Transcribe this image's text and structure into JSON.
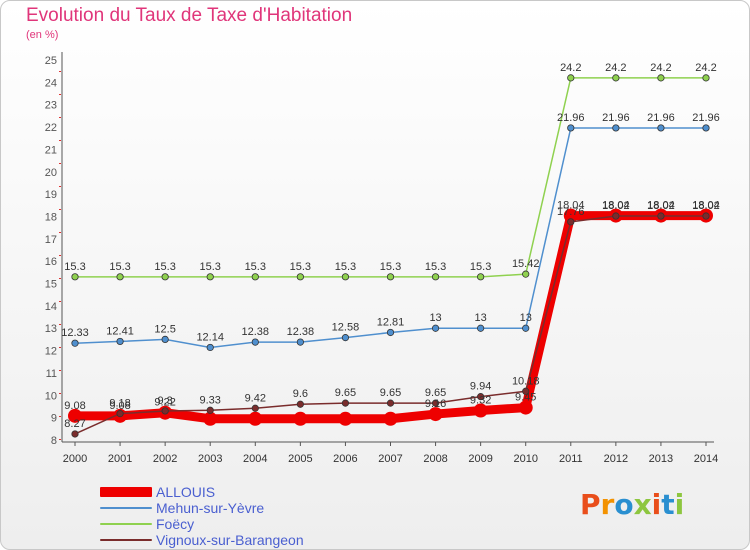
{
  "header": {
    "title": "Evolution du Taux de Taxe d'Habitation",
    "unit": "(en %)"
  },
  "logo": {
    "text": "Proxiti",
    "colors": [
      "#e94e1b",
      "#f39200",
      "#2a8fd0",
      "#8dc63f",
      "#e94e1b",
      "#2a8fd0",
      "#8dc63f"
    ]
  },
  "chart_data": {
    "type": "line",
    "x": [
      "2000",
      "2001",
      "2002",
      "2003",
      "2004",
      "2005",
      "2006",
      "2007",
      "2008",
      "2009",
      "2010",
      "2011",
      "2012",
      "2013",
      "2014"
    ],
    "ylim": [
      8,
      25
    ],
    "yticks": [
      8,
      9,
      10,
      11,
      12,
      13,
      14,
      15,
      16,
      17,
      18,
      19,
      20,
      21,
      22,
      23,
      24,
      25
    ],
    "grid": false,
    "legend_position": "bottom-left",
    "series": [
      {
        "name": "ALLOUIS",
        "color": "#ee0000",
        "values": [
          9.08,
          9.08,
          9.22,
          8.95,
          8.95,
          8.95,
          8.95,
          8.95,
          9.16,
          9.32,
          9.45,
          18.04,
          18.04,
          18.04,
          18.04
        ],
        "labels": [
          "9.08",
          "9.08",
          "9.22",
          "",
          "",
          "",
          "",
          "",
          "9.16",
          "9.32",
          "9.45",
          "18.04",
          "18.04",
          "18.04",
          "18.04"
        ]
      },
      {
        "name": "Mehun-sur-Yèvre",
        "color": "#4f8fce",
        "values": [
          12.33,
          12.41,
          12.5,
          12.14,
          12.38,
          12.38,
          12.58,
          12.81,
          13,
          13,
          13,
          21.96,
          21.96,
          21.96,
          21.96
        ],
        "labels": [
          "12.33",
          "12.41",
          "12.5",
          "12.14",
          "12.38",
          "12.38",
          "12.58",
          "12.81",
          "13",
          "13",
          "13",
          "21.96",
          "21.96",
          "21.96",
          "21.96"
        ]
      },
      {
        "name": "Foëcy",
        "color": "#8fd14f",
        "values": [
          15.3,
          15.3,
          15.3,
          15.3,
          15.3,
          15.3,
          15.3,
          15.3,
          15.3,
          15.3,
          15.42,
          24.2,
          24.2,
          24.2,
          24.2
        ],
        "labels": [
          "15.3",
          "15.3",
          "15.3",
          "15.3",
          "15.3",
          "15.3",
          "15.3",
          "15.3",
          "15.3",
          "15.3",
          "15.42",
          "24.2",
          "24.2",
          "24.2",
          "24.2"
        ]
      },
      {
        "name": "Vignoux-sur-Barangeon",
        "color": "#7a2c2c",
        "values": [
          8.27,
          9.18,
          9.3,
          9.33,
          9.42,
          9.6,
          9.65,
          9.65,
          9.65,
          9.94,
          10.18,
          17.76,
          18.02,
          18.02,
          18.02
        ],
        "labels": [
          "8.27",
          "9.18",
          "9.3",
          "9.33",
          "9.42",
          "9.6",
          "9.65",
          "9.65",
          "9.65",
          "9.94",
          "10.18",
          "17.76",
          "18.02",
          "18.02",
          "18.02"
        ]
      }
    ]
  }
}
